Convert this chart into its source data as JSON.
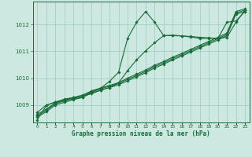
{
  "title": "Graphe pression niveau de la mer (hPa)",
  "bg_color": "#cce8e0",
  "grid_color": "#99ccc0",
  "line_color": "#1a6b3a",
  "text_color": "#1a6b3a",
  "xlim": [
    -0.5,
    23.5
  ],
  "ylim": [
    1008.35,
    1012.85
  ],
  "yticks": [
    1009,
    1010,
    1011,
    1012
  ],
  "xticks": [
    0,
    1,
    2,
    3,
    4,
    5,
    6,
    7,
    8,
    9,
    10,
    11,
    12,
    13,
    14,
    15,
    16,
    17,
    18,
    19,
    20,
    21,
    22,
    23
  ],
  "series": [
    [
      1008.55,
      1008.75,
      1009.0,
      1009.1,
      1009.2,
      1009.28,
      1009.45,
      1009.55,
      1009.65,
      1009.75,
      1009.9,
      1010.05,
      1010.2,
      1010.38,
      1010.52,
      1010.68,
      1010.82,
      1010.97,
      1011.12,
      1011.27,
      1011.42,
      1011.58,
      1012.38,
      1012.48
    ],
    [
      1008.6,
      1008.8,
      1009.05,
      1009.15,
      1009.25,
      1009.33,
      1009.48,
      1009.6,
      1009.7,
      1009.8,
      1009.95,
      1010.1,
      1010.25,
      1010.43,
      1010.57,
      1010.73,
      1010.87,
      1011.02,
      1011.17,
      1011.32,
      1011.47,
      1011.63,
      1012.43,
      1012.53
    ],
    [
      1008.65,
      1008.85,
      1009.08,
      1009.18,
      1009.28,
      1009.37,
      1009.52,
      1009.63,
      1009.73,
      1009.83,
      1010.0,
      1010.15,
      1010.3,
      1010.48,
      1010.62,
      1010.78,
      1010.92,
      1011.07,
      1011.22,
      1011.37,
      1011.52,
      1011.68,
      1012.48,
      1012.58
    ],
    [
      1008.72,
      1009.0,
      1009.1,
      1009.22,
      1009.28,
      1009.33,
      1009.42,
      1009.55,
      1009.65,
      1009.82,
      1010.28,
      1010.68,
      1011.02,
      1011.32,
      1011.58,
      1011.6,
      1011.57,
      1011.55,
      1011.52,
      1011.5,
      1011.48,
      1011.52,
      1012.08,
      1012.52
    ],
    [
      1008.45,
      1008.98,
      1009.12,
      1009.18,
      1009.23,
      1009.28,
      1009.52,
      1009.62,
      1009.88,
      1010.22,
      1011.48,
      1012.08,
      1012.48,
      1012.08,
      1011.58,
      1011.58,
      1011.57,
      1011.53,
      1011.48,
      1011.48,
      1011.48,
      1012.08,
      1012.13,
      1012.48
    ]
  ]
}
